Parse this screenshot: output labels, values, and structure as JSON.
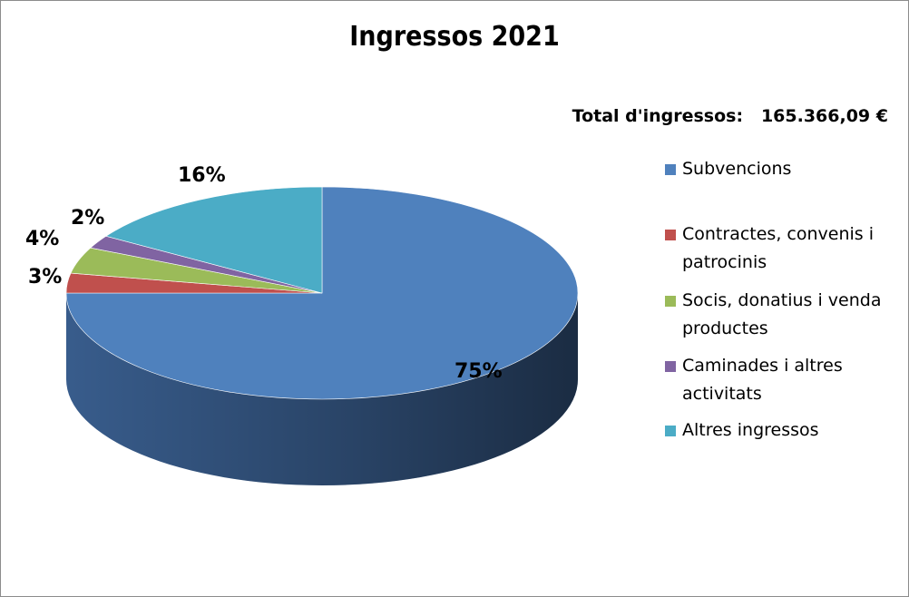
{
  "chart_data": {
    "type": "pie",
    "title": "Ingressos 2021",
    "total_label": "Total d'ingressos:",
    "total_value": "165.366,09 €",
    "legend_position": "right",
    "slices": [
      {
        "name": "Subvencions",
        "value": 75,
        "label": "75%",
        "color": "#4F81BD",
        "side_color": "#3B6193"
      },
      {
        "name": "Contractes, convenis i patrocinis",
        "value": 3,
        "label": "3%",
        "color": "#C0504D",
        "side_color": "#8E3B39"
      },
      {
        "name": "Socis, donatius i venda productes",
        "value": 4,
        "label": "4%",
        "color": "#9BBB59",
        "side_color": "#738B42"
      },
      {
        "name": "Caminades i altres activitats",
        "value": 2,
        "label": "2%",
        "color": "#8064A2",
        "side_color": "#5F4A79"
      },
      {
        "name": "Altres ingressos",
        "value": 16,
        "label": "16%",
        "color": "#4BACC6",
        "side_color": "#378093"
      }
    ]
  }
}
